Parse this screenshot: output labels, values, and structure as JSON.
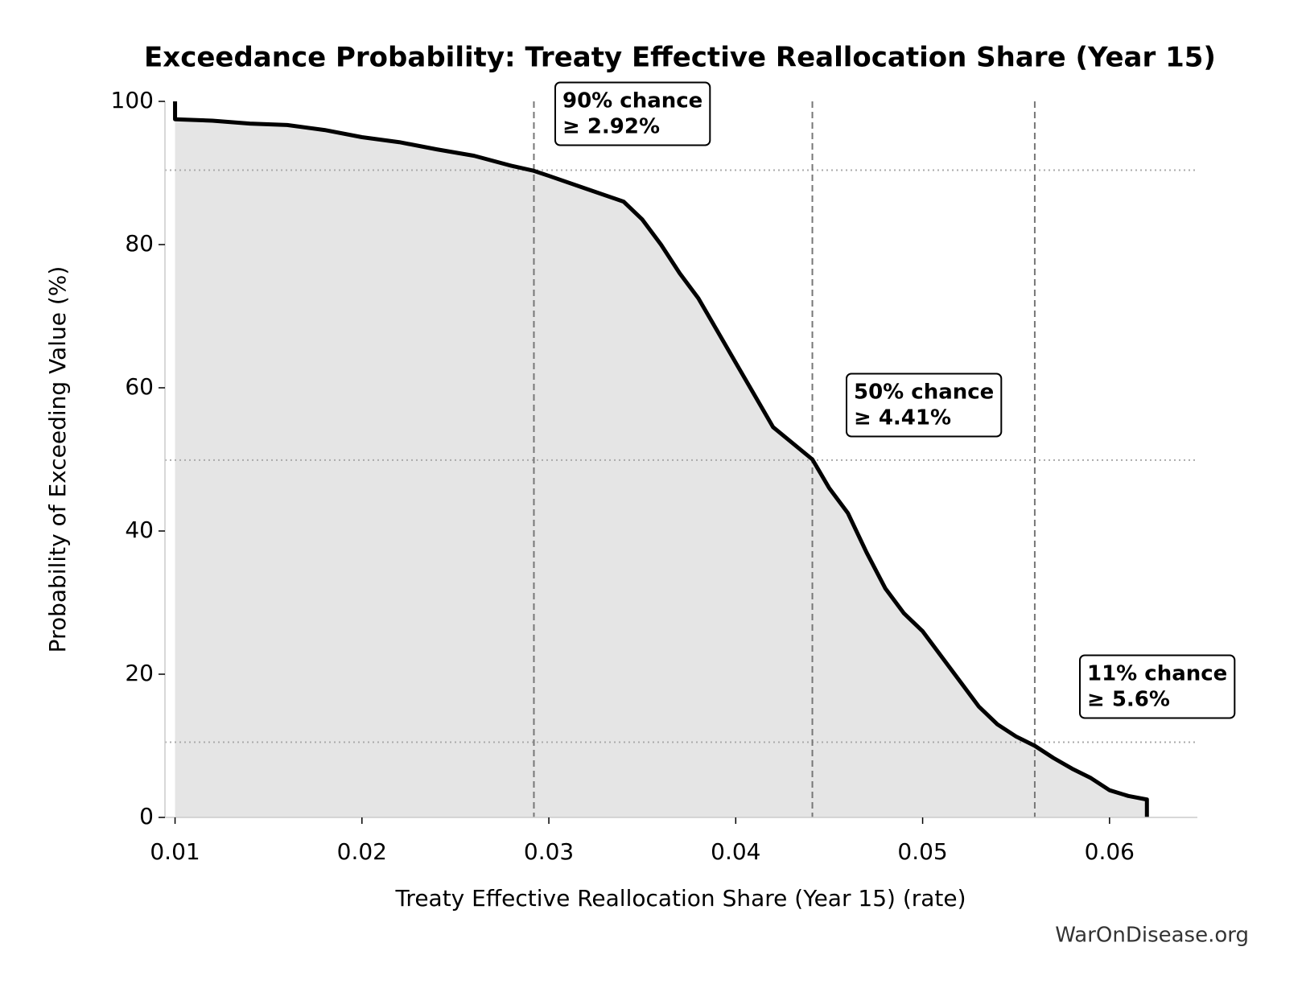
{
  "chart_data": {
    "type": "line",
    "title": "Exceedance Probability: Treaty Effective Reallocation Share (Year 15)",
    "xlabel": "Treaty Effective Reallocation Share (Year 15) (rate)",
    "ylabel": "Probability of Exceeding Value (%)",
    "source": "WarOnDisease.org",
    "x": [
      0.01,
      0.01,
      0.012,
      0.014,
      0.016,
      0.018,
      0.02,
      0.022,
      0.024,
      0.026,
      0.028,
      0.0292,
      0.03,
      0.032,
      0.034,
      0.035,
      0.036,
      0.037,
      0.038,
      0.039,
      0.04,
      0.041,
      0.042,
      0.0441,
      0.045,
      0.046,
      0.047,
      0.048,
      0.049,
      0.05,
      0.051,
      0.052,
      0.053,
      0.054,
      0.055,
      0.056,
      0.057,
      0.058,
      0.059,
      0.06,
      0.061,
      0.062,
      0.062
    ],
    "series": [
      {
        "color": "#000000",
        "fill": "#e5e5e5",
        "values": [
          100,
          97.5,
          97.3,
          96.9,
          96.7,
          96.0,
          95.0,
          94.3,
          93.3,
          92.4,
          91.0,
          90.3,
          89.6,
          87.8,
          86.0,
          83.5,
          80,
          76,
          72.5,
          68,
          63.5,
          59,
          54.5,
          50,
          46,
          42.5,
          37,
          32,
          28.5,
          26,
          22.5,
          19,
          15.5,
          13,
          11.3,
          10,
          8.3,
          6.8,
          5.5,
          3.8,
          3.0,
          2.5,
          0
        ]
      }
    ],
    "xlim": [
      0.00946,
      0.0647
    ],
    "ylim": [
      0,
      100
    ],
    "xticks": [
      0.01,
      0.02,
      0.03,
      0.04,
      0.05,
      0.06
    ],
    "yticks": [
      0,
      20,
      40,
      60,
      80,
      100
    ],
    "vlines": [
      0.0292,
      0.0441,
      0.056
    ],
    "hlines": [
      90.4,
      49.9,
      10.5
    ],
    "annotations": [
      {
        "lines": [
          "90% chance",
          "≥ 2.92%"
        ]
      },
      {
        "lines": [
          "50% chance",
          "≥ 4.41%"
        ]
      },
      {
        "lines": [
          "11% chance",
          "≥ 5.6%"
        ]
      }
    ]
  }
}
